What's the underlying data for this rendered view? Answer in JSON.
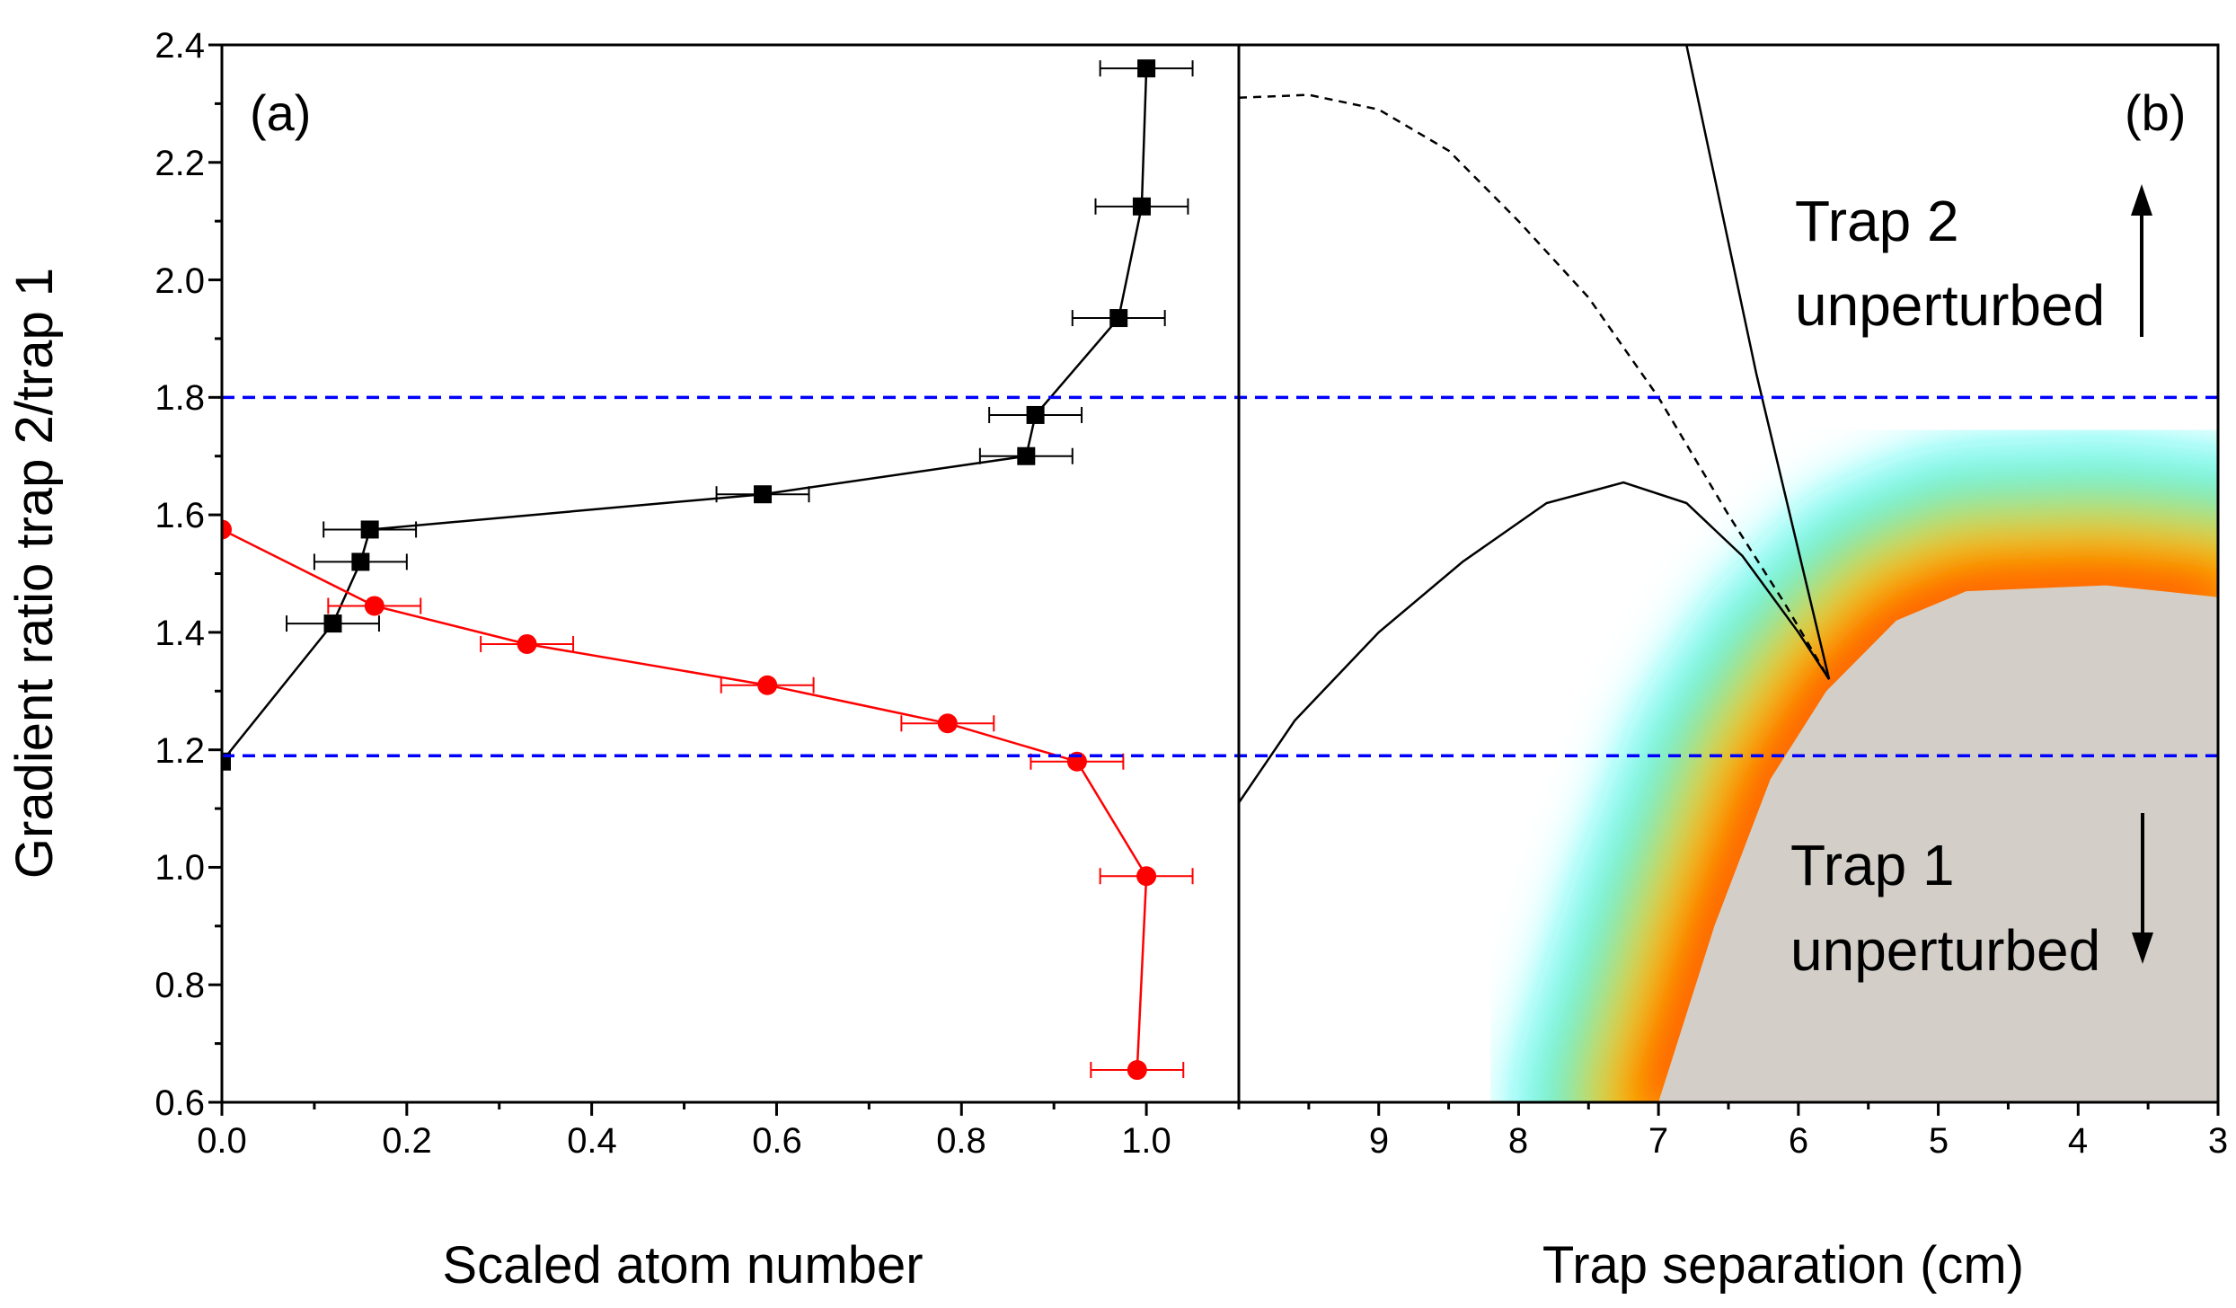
{
  "chart_data": [
    {
      "panel": "a",
      "type": "line",
      "panel_label": "(a)",
      "xlabel": "Scaled atom number",
      "ylabel": "Gradient ratio trap 2/trap 1",
      "xlim": [
        0.0,
        1.1
      ],
      "ylim": [
        0.6,
        2.4
      ],
      "x_ticks": [
        "0.0",
        "0.2",
        "0.4",
        "0.6",
        "0.8",
        "1.0"
      ],
      "y_ticks": [
        "0.6",
        "0.8",
        "1.0",
        "1.2",
        "1.4",
        "1.6",
        "1.8",
        "2.0",
        "2.2",
        "2.4"
      ],
      "hlines": [
        {
          "y": 1.8,
          "color": "#0000ff",
          "style": "dashed"
        },
        {
          "y": 1.19,
          "color": "#0000ff",
          "style": "dashed"
        }
      ],
      "series": [
        {
          "name": "trap 2 (squares)",
          "color": "#000000",
          "marker": "square",
          "points": [
            {
              "x": 0.0,
              "y": 1.18,
              "xerr": 0.0
            },
            {
              "x": 0.12,
              "y": 1.415,
              "xerr": 0.05
            },
            {
              "x": 0.15,
              "y": 1.52,
              "xerr": 0.05
            },
            {
              "x": 0.16,
              "y": 1.575,
              "xerr": 0.05
            },
            {
              "x": 0.585,
              "y": 1.635,
              "xerr": 0.05
            },
            {
              "x": 0.87,
              "y": 1.7,
              "xerr": 0.05
            },
            {
              "x": 0.88,
              "y": 1.77,
              "xerr": 0.05
            },
            {
              "x": 0.97,
              "y": 1.935,
              "xerr": 0.05
            },
            {
              "x": 0.995,
              "y": 2.125,
              "xerr": 0.05
            },
            {
              "x": 1.0,
              "y": 2.36,
              "xerr": 0.05
            }
          ]
        },
        {
          "name": "trap 1 (circles)",
          "color": "#ff0000",
          "marker": "circle",
          "points": [
            {
              "x": 0.0,
              "y": 1.575,
              "xerr": 0.0
            },
            {
              "x": 0.165,
              "y": 1.445,
              "xerr": 0.05
            },
            {
              "x": 0.33,
              "y": 1.38,
              "xerr": 0.05
            },
            {
              "x": 0.59,
              "y": 1.31,
              "xerr": 0.05
            },
            {
              "x": 0.785,
              "y": 1.245,
              "xerr": 0.05
            },
            {
              "x": 0.925,
              "y": 1.18,
              "xerr": 0.05
            },
            {
              "x": 1.0,
              "y": 0.985,
              "xerr": 0.05
            },
            {
              "x": 0.99,
              "y": 0.655,
              "xerr": 0.05
            }
          ]
        }
      ]
    },
    {
      "panel": "b",
      "type": "heatmap",
      "panel_label": "(b)",
      "xlabel": "Trap separation (cm)",
      "xlim": [
        10.0,
        3.0
      ],
      "ylim": [
        0.6,
        2.4
      ],
      "x_ticks": [
        "9",
        "8",
        "7",
        "6",
        "5",
        "4",
        "3"
      ],
      "hlines": [
        {
          "y": 1.8,
          "color": "#0000ff",
          "style": "dashed"
        },
        {
          "y": 1.19,
          "color": "#0000ff",
          "style": "dashed"
        }
      ],
      "colors": {
        "grey_region": "#d3cfc8",
        "band": [
          "#ff0000",
          "#ff8c00",
          "#ffff00",
          "#00c800",
          "#00ffff"
        ]
      },
      "grey_region_boundary": [
        [
          7.0,
          0.6
        ],
        [
          6.6,
          0.9
        ],
        [
          6.2,
          1.15
        ],
        [
          5.8,
          1.3
        ],
        [
          5.3,
          1.42
        ],
        [
          4.8,
          1.47
        ],
        [
          3.8,
          1.48
        ],
        [
          3.0,
          1.46
        ]
      ],
      "curves": [
        {
          "name": "solid lower curve",
          "style": "solid",
          "points": [
            [
              10.0,
              1.11
            ],
            [
              9.6,
              1.25
            ],
            [
              9.0,
              1.4
            ],
            [
              8.4,
              1.52
            ],
            [
              7.8,
              1.62
            ],
            [
              7.25,
              1.655
            ],
            [
              6.8,
              1.62
            ],
            [
              6.4,
              1.53
            ],
            [
              6.0,
              1.4
            ],
            [
              5.78,
              1.32
            ]
          ]
        },
        {
          "name": "dashed curve",
          "style": "dashed",
          "points": [
            [
              10.0,
              2.31
            ],
            [
              9.5,
              2.315
            ],
            [
              9.0,
              2.29
            ],
            [
              8.5,
              2.22
            ],
            [
              8.0,
              2.1
            ],
            [
              7.5,
              1.97
            ],
            [
              7.0,
              1.8
            ],
            [
              6.5,
              1.6
            ],
            [
              6.1,
              1.45
            ],
            [
              5.78,
              1.32
            ]
          ]
        },
        {
          "name": "solid upper line",
          "style": "solid",
          "points": [
            [
              6.8,
              2.4
            ],
            [
              6.3,
              1.84
            ],
            [
              5.78,
              1.32
            ]
          ]
        }
      ],
      "annotations": [
        {
          "text_lines": [
            "Trap 2",
            "unperturbed"
          ],
          "arrow": "up"
        },
        {
          "text_lines": [
            "Trap 1",
            "unperturbed"
          ],
          "arrow": "down"
        }
      ]
    }
  ]
}
